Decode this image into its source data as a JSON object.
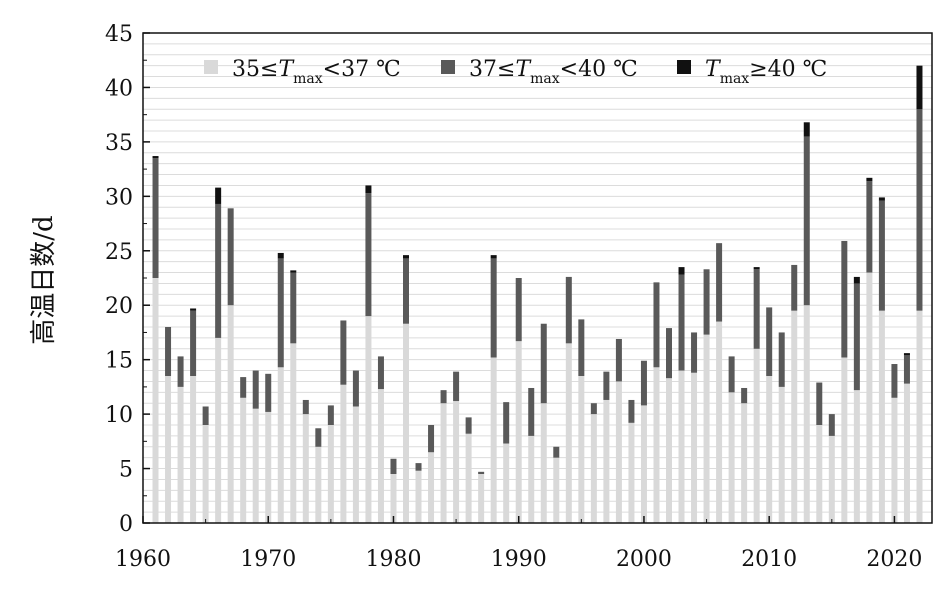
{
  "chart_data": {
    "type": "bar",
    "stacked": true,
    "ylabel": "高温日数/d",
    "xlabel": "",
    "ylim": [
      0,
      45
    ],
    "xlim": [
      1960,
      2023
    ],
    "yticks": [
      "0",
      "5",
      "10",
      "15",
      "20",
      "25",
      "30",
      "35",
      "40",
      "45"
    ],
    "xticks": [
      "1960",
      "1970",
      "1980",
      "1990",
      "2000",
      "2010",
      "2020"
    ],
    "grid": true,
    "legend_position": "top",
    "legend": [
      {
        "pre": "35≤",
        "var": "T",
        "sub": "max",
        "post": "<37 ℃"
      },
      {
        "pre": "37≤",
        "var": "T",
        "sub": "max",
        "post": "<40 ℃"
      },
      {
        "pre": "",
        "var": "T",
        "sub": "max",
        "post": "≥40 ℃"
      }
    ],
    "colors": [
      "#d9d9d9",
      "#595959",
      "#111111"
    ],
    "x": [
      1961,
      1962,
      1963,
      1964,
      1965,
      1966,
      1967,
      1968,
      1969,
      1970,
      1971,
      1972,
      1973,
      1974,
      1975,
      1976,
      1977,
      1978,
      1979,
      1980,
      1981,
      1982,
      1983,
      1984,
      1985,
      1986,
      1987,
      1988,
      1989,
      1990,
      1991,
      1992,
      1993,
      1994,
      1995,
      1996,
      1997,
      1998,
      1999,
      2000,
      2001,
      2002,
      2003,
      2004,
      2005,
      2006,
      2007,
      2008,
      2009,
      2010,
      2011,
      2012,
      2013,
      2014,
      2015,
      2016,
      2017,
      2018,
      2019,
      2020,
      2021,
      2022
    ],
    "series": [
      {
        "name": "35≤Tmax<37 ℃",
        "values": [
          22.5,
          13.5,
          12.5,
          13.5,
          9,
          17,
          20,
          11.5,
          10.5,
          10.2,
          14.3,
          16.5,
          10,
          7,
          9,
          12.7,
          10.7,
          19,
          12.3,
          4.5,
          18.3,
          4.8,
          6.5,
          11,
          11.2,
          8.2,
          4.5,
          15.2,
          7.3,
          16.7,
          8,
          11,
          6,
          16.5,
          13.5,
          10,
          11.3,
          13,
          9.2,
          10.8,
          14.3,
          13.3,
          14,
          13.8,
          17.3,
          18.5,
          12,
          11,
          16,
          13.5,
          12.5,
          19.5,
          20,
          9,
          8,
          15.2,
          12.2,
          23,
          19.5,
          11.5,
          12.8,
          19.5
        ]
      },
      {
        "name": "37≤Tmax<40 ℃",
        "values": [
          11,
          4.5,
          2.8,
          6,
          1.7,
          12.3,
          8.9,
          1.9,
          3.5,
          3.5,
          10,
          6.5,
          1.3,
          1.7,
          1.8,
          5.9,
          3.3,
          11.3,
          3,
          1.4,
          6,
          0.7,
          2.5,
          1.2,
          2.7,
          1.5,
          0.2,
          9.1,
          3.8,
          5.8,
          4.4,
          7.3,
          1,
          6.1,
          5.2,
          1,
          2.6,
          3.9,
          2.1,
          4.1,
          7.8,
          4.6,
          8.8,
          3.7,
          6,
          7.2,
          3.3,
          1.4,
          7.3,
          6.3,
          5,
          4.2,
          15.5,
          3.9,
          2,
          10.7,
          9.8,
          8.4,
          10.1,
          3.1,
          2.6,
          18.5
        ]
      },
      {
        "name": "Tmax≥40 ℃",
        "values": [
          0.2,
          0,
          0,
          0.2,
          0,
          1.5,
          0,
          0,
          0,
          0,
          0.5,
          0.2,
          0,
          0,
          0,
          0,
          0,
          0.7,
          0,
          0,
          0.3,
          0,
          0,
          0,
          0,
          0,
          0,
          0.3,
          0,
          0,
          0,
          0,
          0,
          0,
          0,
          0,
          0,
          0,
          0,
          0,
          0,
          0,
          0.7,
          0,
          0,
          0,
          0,
          0,
          0.2,
          0,
          0,
          0,
          1.3,
          0,
          0,
          0,
          0.6,
          0.3,
          0.3,
          0,
          0.2,
          4
        ]
      }
    ]
  }
}
